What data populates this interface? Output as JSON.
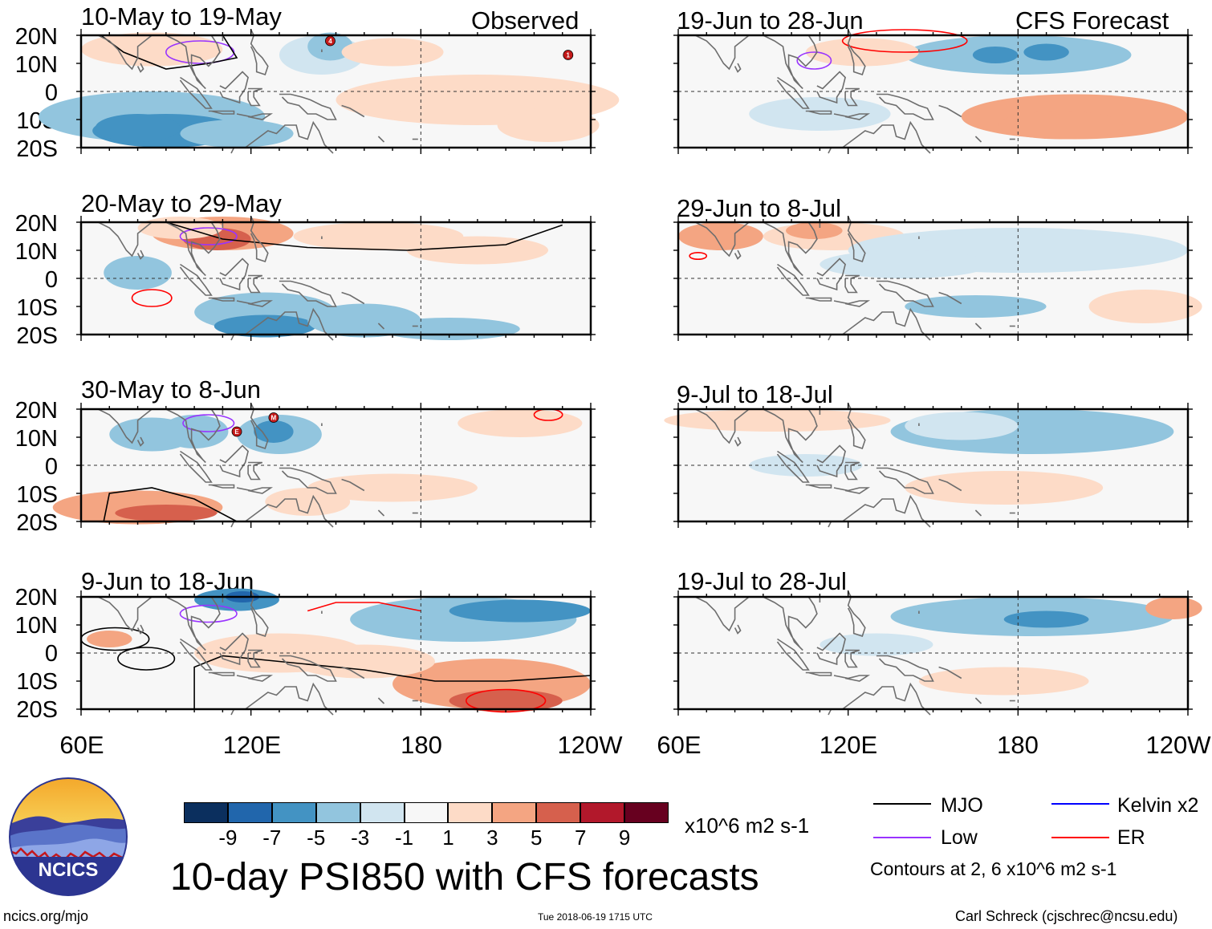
{
  "header": {
    "left_tag": "Observed",
    "right_tag": "CFS Forecast"
  },
  "panels": [
    {
      "title": "10-May to 19-May"
    },
    {
      "title": "20-May to 29-May"
    },
    {
      "title": "30-May to 8-Jun"
    },
    {
      "title": "9-Jun to 18-Jun"
    },
    {
      "title": "19-Jun to 28-Jun"
    },
    {
      "title": "29-Jun to 8-Jul"
    },
    {
      "title": "9-Jul to 18-Jul"
    },
    {
      "title": "19-Jul to 28-Jul"
    }
  ],
  "axes": {
    "lat_labels": [
      "20N",
      "10N",
      "0",
      "10S",
      "20S"
    ],
    "lon_labels": [
      "60E",
      "120E",
      "180",
      "120W"
    ]
  },
  "colorbar": {
    "labels": [
      "-9",
      "-7",
      "-5",
      "-3",
      "-1",
      "1",
      "3",
      "5",
      "7",
      "9"
    ],
    "units": "x10^6 m2 s-1",
    "colors": [
      "#0b2f5e",
      "#2166ac",
      "#4393c3",
      "#92c5de",
      "#d1e5f0",
      "#f7f7f7",
      "#fddbc7",
      "#f4a582",
      "#d6604d",
      "#b2182b",
      "#67001f"
    ]
  },
  "main_title": "10-day PSI850 with CFS forecasts",
  "legend": {
    "items": [
      {
        "label": "MJO",
        "color": "#000000"
      },
      {
        "label": "Kelvin x2",
        "color": "#0000ff"
      },
      {
        "label": "Low",
        "color": "#9933ff"
      },
      {
        "label": "ER",
        "color": "#ff0000"
      }
    ],
    "contours_note": "Contours at 2, 6 x10^6 m2 s-1"
  },
  "logo_text": "NCICS",
  "footer": {
    "url": "ncics.org/mjo",
    "timestamp": "Tue 2018-06-19 1715 UTC",
    "credit": "Carl Schreck (cjschrec@ncsu.edu)"
  },
  "storm_markers": [
    "4",
    "1",
    "M",
    "E"
  ],
  "chart_data": {
    "type": "heatmap",
    "title": "10-day PSI850 with CFS forecasts",
    "variable": "850-hPa streamfunction anomaly",
    "units": "x10^6 m2 s-1",
    "x_range_deg_east": [
      60,
      240
    ],
    "y_range_deg": [
      -20,
      20
    ],
    "x_ticks": [
      "60E",
      "120E",
      "180",
      "120W"
    ],
    "y_ticks": [
      "20N",
      "10N",
      "0",
      "10S",
      "20S"
    ],
    "color_levels": [
      -9,
      -7,
      -5,
      -3,
      -1,
      1,
      3,
      5,
      7,
      9
    ],
    "contour_levels": [
      2,
      6
    ],
    "contour_types": [
      "MJO",
      "Kelvin x2",
      "Low",
      "ER"
    ],
    "periods_observed": [
      "10-May to 19-May",
      "20-May to 29-May",
      "30-May to 8-Jun",
      "9-Jun to 18-Jun"
    ],
    "periods_forecast": [
      "19-Jun to 28-Jun",
      "29-Jun to 8-Jul",
      "9-Jul to 18-Jul",
      "19-Jul to 28-Jul"
    ]
  }
}
